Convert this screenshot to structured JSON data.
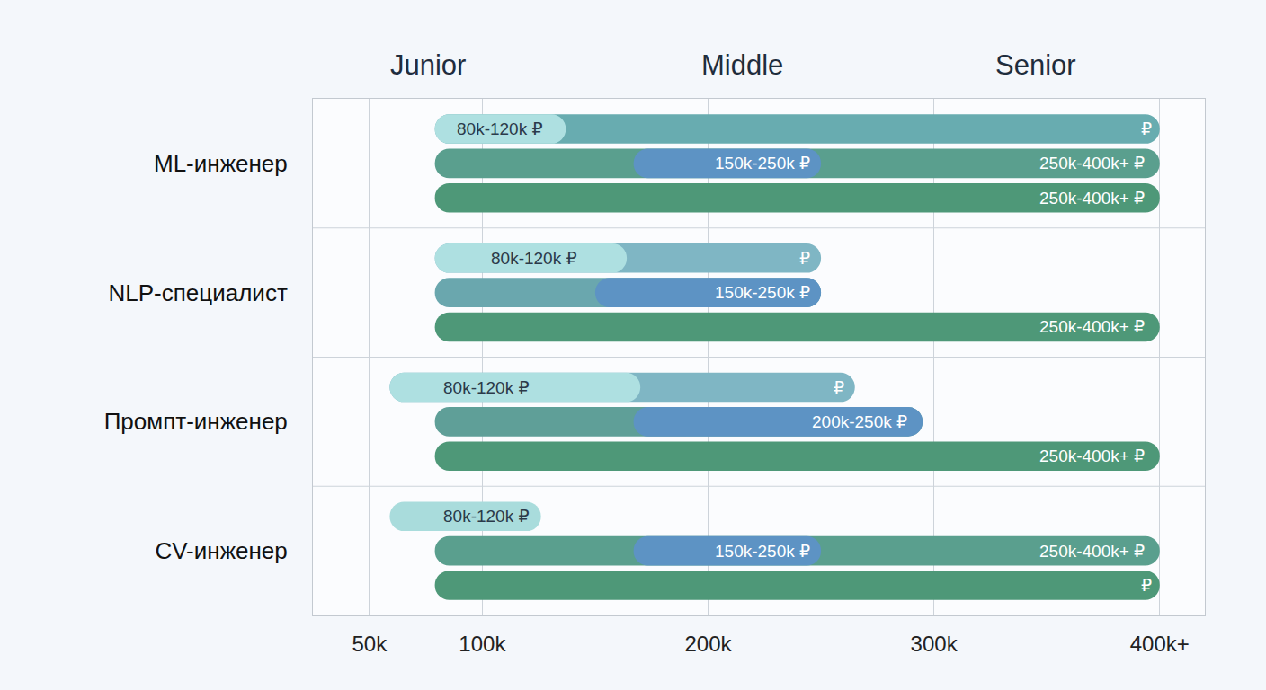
{
  "chart_data": {
    "type": "bar",
    "orientation": "horizontal",
    "categories": [
      "ML-инженер",
      "NLP-специалист",
      "Промпт-инженер",
      "CV-инженер"
    ],
    "xlim": [
      25000,
      420000
    ],
    "xticks": [
      {
        "value": 50000,
        "label": "50k"
      },
      {
        "value": 100000,
        "label": "100k"
      },
      {
        "value": 200000,
        "label": "200k"
      },
      {
        "value": 300000,
        "label": "300k"
      },
      {
        "value": 400000,
        "label": "400k+"
      }
    ],
    "grid": true,
    "annotations": [
      {
        "text": "Junior",
        "x": 76000
      },
      {
        "text": "Middle",
        "x": 215000
      },
      {
        "text": "Senior",
        "x": 345000
      }
    ],
    "series": [
      {
        "colors": [
          "#68acb0",
          "#7fb6c4",
          "#7fb6c4",
          "#a9dcdc"
        ],
        "ranges": [
          [
            79000,
            400000
          ],
          [
            79000,
            250000
          ],
          [
            59000,
            265000
          ],
          [
            59000,
            126000
          ]
        ],
        "highlights": {
          "color": "#aee0e1",
          "ranges": [
            [
              79000,
              137000
            ],
            [
              79000,
              164000
            ],
            [
              59000,
              170000
            ],
            null
          ]
        },
        "labels": [
          [
            {
              "text": "80k-120k ₽",
              "x": 108000
            },
            {
              "text": "₽",
              "x": 394000
            }
          ],
          [
            {
              "text": "80k-120k ₽",
              "x": 123000
            },
            {
              "text": "₽",
              "x": 243000
            }
          ],
          [
            {
              "text": "80k-120k ₽",
              "x": 102000
            },
            {
              "text": "₽",
              "x": 258000
            }
          ],
          [
            {
              "text": "80k-120k ₽",
              "x": 102000
            }
          ]
        ]
      },
      {
        "colors": [
          "#5a9f8e",
          "#6aa7ae",
          "#5f9f98",
          "#5a9f8e"
        ],
        "ranges": [
          [
            79000,
            400000
          ],
          [
            79000,
            250000
          ],
          [
            79000,
            295000
          ],
          [
            79000,
            400000
          ]
        ],
        "highlights": {
          "color": "#5d93c4",
          "ranges": [
            [
              167000,
              250000
            ],
            [
              150000,
              250000
            ],
            [
              167000,
              295000
            ],
            [
              167000,
              250000
            ]
          ]
        },
        "labels": [
          [
            {
              "text": "150k-250k ₽",
              "x": 224000
            },
            {
              "text": "250k-400k+ ₽",
              "x": 370000
            }
          ],
          [
            {
              "text": "150k-250k ₽",
              "x": 224000
            }
          ],
          [
            {
              "text": "200k-250k ₽",
              "x": 267000
            }
          ],
          [
            {
              "text": "150k-250k ₽",
              "x": 224000
            },
            {
              "text": "250k-400k+ ₽",
              "x": 370000
            }
          ]
        ]
      },
      {
        "colors": [
          "#4e9878",
          "#4e9878",
          "#4e9878",
          "#4e9878"
        ],
        "ranges": [
          [
            79000,
            400000
          ],
          [
            79000,
            400000
          ],
          [
            79000,
            400000
          ],
          [
            79000,
            400000
          ]
        ],
        "labels": [
          [
            {
              "text": "250k-400k+ ₽",
              "x": 370000
            }
          ],
          [
            {
              "text": "250k-400k+ ₽",
              "x": 370000
            }
          ],
          [
            {
              "text": "250k-400k+ ₽",
              "x": 370000
            }
          ],
          [
            {
              "text": "₽",
              "x": 394000
            }
          ]
        ]
      }
    ]
  }
}
